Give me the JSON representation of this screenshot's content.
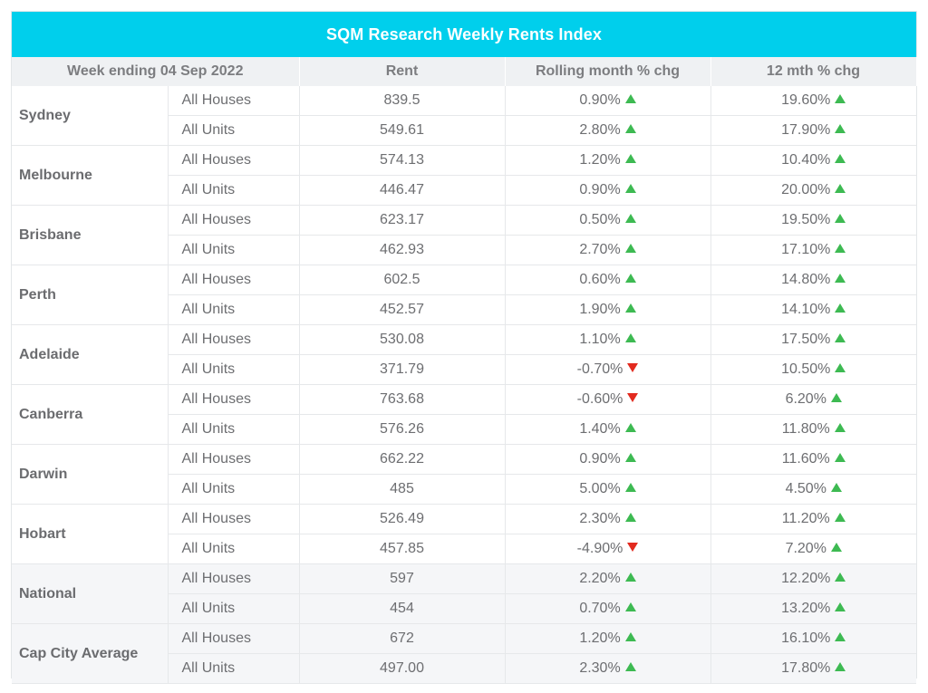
{
  "title": "SQM Research Weekly Rents Index",
  "headers": {
    "week": "Week ending 04 Sep 2022",
    "rent": "Rent",
    "month": "Rolling month % chg",
    "year": "12 mth % chg"
  },
  "colors": {
    "title_bg": "#00cfec",
    "up": "#3dba52",
    "down": "#e22a1f"
  },
  "rows": [
    {
      "city": "Sydney",
      "type": "All Houses",
      "rent": "839.5",
      "month": "0.90%",
      "month_dir": "up",
      "year": "19.60%",
      "year_dir": "up"
    },
    {
      "city": "",
      "type": "All Units",
      "rent": "549.61",
      "month": "2.80%",
      "month_dir": "up",
      "year": "17.90%",
      "year_dir": "up"
    },
    {
      "city": "Melbourne",
      "type": "All Houses",
      "rent": "574.13",
      "month": "1.20%",
      "month_dir": "up",
      "year": "10.40%",
      "year_dir": "up"
    },
    {
      "city": "",
      "type": "All Units",
      "rent": "446.47",
      "month": "0.90%",
      "month_dir": "up",
      "year": "20.00%",
      "year_dir": "up"
    },
    {
      "city": "Brisbane",
      "type": "All Houses",
      "rent": "623.17",
      "month": "0.50%",
      "month_dir": "up",
      "year": "19.50%",
      "year_dir": "up"
    },
    {
      "city": "",
      "type": "All Units",
      "rent": "462.93",
      "month": "2.70%",
      "month_dir": "up",
      "year": "17.10%",
      "year_dir": "up"
    },
    {
      "city": "Perth",
      "type": "All Houses",
      "rent": "602.5",
      "month": "0.60%",
      "month_dir": "up",
      "year": "14.80%",
      "year_dir": "up"
    },
    {
      "city": "",
      "type": "All Units",
      "rent": "452.57",
      "month": "1.90%",
      "month_dir": "up",
      "year": "14.10%",
      "year_dir": "up"
    },
    {
      "city": "Adelaide",
      "type": "All Houses",
      "rent": "530.08",
      "month": "1.10%",
      "month_dir": "up",
      "year": "17.50%",
      "year_dir": "up"
    },
    {
      "city": "",
      "type": "All Units",
      "rent": "371.79",
      "month": "-0.70%",
      "month_dir": "down",
      "year": "10.50%",
      "year_dir": "up"
    },
    {
      "city": "Canberra",
      "type": "All Houses",
      "rent": "763.68",
      "month": "-0.60%",
      "month_dir": "down",
      "year": "6.20%",
      "year_dir": "up"
    },
    {
      "city": "",
      "type": "All Units",
      "rent": "576.26",
      "month": "1.40%",
      "month_dir": "up",
      "year": "11.80%",
      "year_dir": "up"
    },
    {
      "city": "Darwin",
      "type": "All Houses",
      "rent": "662.22",
      "month": "0.90%",
      "month_dir": "up",
      "year": "11.60%",
      "year_dir": "up"
    },
    {
      "city": "",
      "type": "All Units",
      "rent": "485",
      "month": "5.00%",
      "month_dir": "up",
      "year": "4.50%",
      "year_dir": "up"
    },
    {
      "city": "Hobart",
      "type": "All Houses",
      "rent": "526.49",
      "month": "2.30%",
      "month_dir": "up",
      "year": "11.20%",
      "year_dir": "up"
    },
    {
      "city": "",
      "type": "All Units",
      "rent": "457.85",
      "month": "-4.90%",
      "month_dir": "down",
      "year": "7.20%",
      "year_dir": "up"
    },
    {
      "city": "National",
      "type": "All Houses",
      "rent": "597",
      "month": "2.20%",
      "month_dir": "up",
      "year": "12.20%",
      "year_dir": "up",
      "shade": true
    },
    {
      "city": "",
      "type": "All Units",
      "rent": "454",
      "month": "0.70%",
      "month_dir": "up",
      "year": "13.20%",
      "year_dir": "up",
      "shade": true
    },
    {
      "city": "Cap City Average",
      "type": "All Houses",
      "rent": "672",
      "month": "1.20%",
      "month_dir": "up",
      "year": "16.10%",
      "year_dir": "up",
      "shade": true
    },
    {
      "city": "",
      "type": "All Units",
      "rent": "497.00",
      "month": "2.30%",
      "month_dir": "up",
      "year": "17.80%",
      "year_dir": "up",
      "shade": true
    }
  ]
}
